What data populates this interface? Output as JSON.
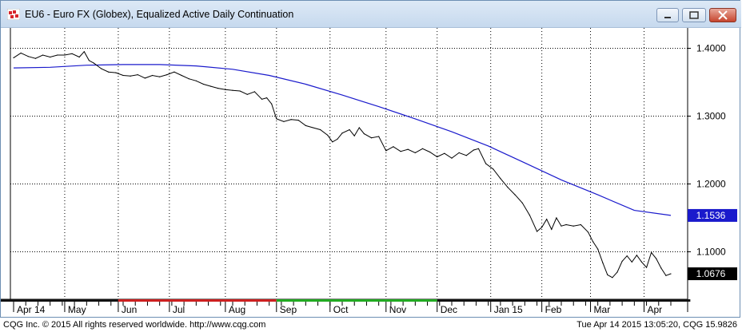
{
  "window": {
    "title": "EU6 - Euro FX (Globex), Equalized Active Daily Continuation"
  },
  "footer": {
    "copyright": "CQG Inc. © 2015 All rights reserved worldwide. http://www.cqg.com",
    "timestamp": "Tue Apr 14 2015 13:05:20, CQG 15.9826"
  },
  "colors": {
    "price_line": "#000000",
    "moving_average": "#1a1acc",
    "ma_badge": "#1a1acc",
    "price_badge": "#000000",
    "session_bar_red": "#cc2020",
    "session_bar_green": "#22aa22",
    "session_bar_black": "#111111"
  },
  "chart_data": {
    "type": "line",
    "title": "EU6 - Euro FX (Globex), Equalized Active Daily Continuation",
    "xlabel": "",
    "ylabel": "",
    "ylim": [
      1.03,
      1.43
    ],
    "yticks": [
      "1.4000",
      "1.3000",
      "1.2000",
      "1.1000"
    ],
    "ytick_values": [
      1.4,
      1.3,
      1.2,
      1.1
    ],
    "grid": true,
    "x_months": [
      "Apr 14",
      "May",
      "Jun",
      "Jul",
      "Aug",
      "Sep",
      "Oct",
      "Nov",
      "Dec",
      "Jan 15",
      "Feb",
      "Mar",
      "Apr"
    ],
    "x_month_start_index": [
      0,
      21,
      43,
      64,
      87,
      108,
      130,
      153,
      174,
      196,
      217,
      237,
      259
    ],
    "last_price_label": "1.0676",
    "last_ma_label": "1.1536",
    "series": [
      {
        "role": "price",
        "values": [
          [
            0,
            1.386
          ],
          [
            3,
            1.393
          ],
          [
            6,
            1.388
          ],
          [
            9,
            1.385
          ],
          [
            12,
            1.39
          ],
          [
            15,
            1.387
          ],
          [
            18,
            1.39
          ],
          [
            21,
            1.39
          ],
          [
            24,
            1.392
          ],
          [
            27,
            1.387
          ],
          [
            29,
            1.395
          ],
          [
            31,
            1.382
          ],
          [
            33,
            1.378
          ],
          [
            36,
            1.37
          ],
          [
            39,
            1.365
          ],
          [
            42,
            1.364
          ],
          [
            45,
            1.36
          ],
          [
            48,
            1.359
          ],
          [
            51,
            1.361
          ],
          [
            54,
            1.356
          ],
          [
            57,
            1.36
          ],
          [
            60,
            1.358
          ],
          [
            63,
            1.361
          ],
          [
            66,
            1.365
          ],
          [
            69,
            1.36
          ],
          [
            72,
            1.355
          ],
          [
            75,
            1.352
          ],
          [
            78,
            1.347
          ],
          [
            81,
            1.344
          ],
          [
            84,
            1.341
          ],
          [
            87,
            1.339
          ],
          [
            90,
            1.338
          ],
          [
            93,
            1.337
          ],
          [
            96,
            1.332
          ],
          [
            99,
            1.336
          ],
          [
            102,
            1.325
          ],
          [
            104,
            1.327
          ],
          [
            106,
            1.318
          ],
          [
            108,
            1.296
          ],
          [
            111,
            1.292
          ],
          [
            114,
            1.295
          ],
          [
            117,
            1.294
          ],
          [
            120,
            1.286
          ],
          [
            123,
            1.283
          ],
          [
            126,
            1.28
          ],
          [
            129,
            1.272
          ],
          [
            131,
            1.262
          ],
          [
            133,
            1.266
          ],
          [
            135,
            1.275
          ],
          [
            138,
            1.28
          ],
          [
            140,
            1.271
          ],
          [
            142,
            1.283
          ],
          [
            144,
            1.274
          ],
          [
            147,
            1.268
          ],
          [
            150,
            1.27
          ],
          [
            153,
            1.249
          ],
          [
            156,
            1.255
          ],
          [
            159,
            1.248
          ],
          [
            162,
            1.251
          ],
          [
            165,
            1.246
          ],
          [
            168,
            1.252
          ],
          [
            171,
            1.247
          ],
          [
            174,
            1.24
          ],
          [
            177,
            1.245
          ],
          [
            180,
            1.238
          ],
          [
            183,
            1.246
          ],
          [
            186,
            1.242
          ],
          [
            189,
            1.25
          ],
          [
            191,
            1.252
          ],
          [
            194,
            1.23
          ],
          [
            197,
            1.222
          ],
          [
            200,
            1.208
          ],
          [
            203,
            1.195
          ],
          [
            206,
            1.184
          ],
          [
            209,
            1.172
          ],
          [
            212,
            1.154
          ],
          [
            215,
            1.13
          ],
          [
            217,
            1.136
          ],
          [
            219,
            1.148
          ],
          [
            221,
            1.133
          ],
          [
            223,
            1.15
          ],
          [
            225,
            1.138
          ],
          [
            227,
            1.14
          ],
          [
            230,
            1.138
          ],
          [
            233,
            1.14
          ],
          [
            236,
            1.129
          ],
          [
            238,
            1.115
          ],
          [
            240,
            1.104
          ],
          [
            242,
            1.084
          ],
          [
            244,
            1.066
          ],
          [
            246,
            1.062
          ],
          [
            248,
            1.07
          ],
          [
            250,
            1.086
          ],
          [
            252,
            1.094
          ],
          [
            254,
            1.085
          ],
          [
            256,
            1.095
          ],
          [
            258,
            1.085
          ],
          [
            260,
            1.077
          ],
          [
            262,
            1.099
          ],
          [
            264,
            1.09
          ],
          [
            266,
            1.076
          ],
          [
            268,
            1.065
          ],
          [
            270,
            1.0676
          ]
        ]
      },
      {
        "role": "moving_average",
        "values": [
          [
            0,
            1.371
          ],
          [
            15,
            1.372
          ],
          [
            30,
            1.375
          ],
          [
            45,
            1.376
          ],
          [
            60,
            1.376
          ],
          [
            75,
            1.374
          ],
          [
            90,
            1.369
          ],
          [
            105,
            1.36
          ],
          [
            120,
            1.347
          ],
          [
            135,
            1.331
          ],
          [
            150,
            1.314
          ],
          [
            165,
            1.296
          ],
          [
            180,
            1.277
          ],
          [
            195,
            1.256
          ],
          [
            210,
            1.231
          ],
          [
            225,
            1.206
          ],
          [
            240,
            1.184
          ],
          [
            255,
            1.161
          ],
          [
            270,
            1.1536
          ]
        ]
      }
    ]
  }
}
